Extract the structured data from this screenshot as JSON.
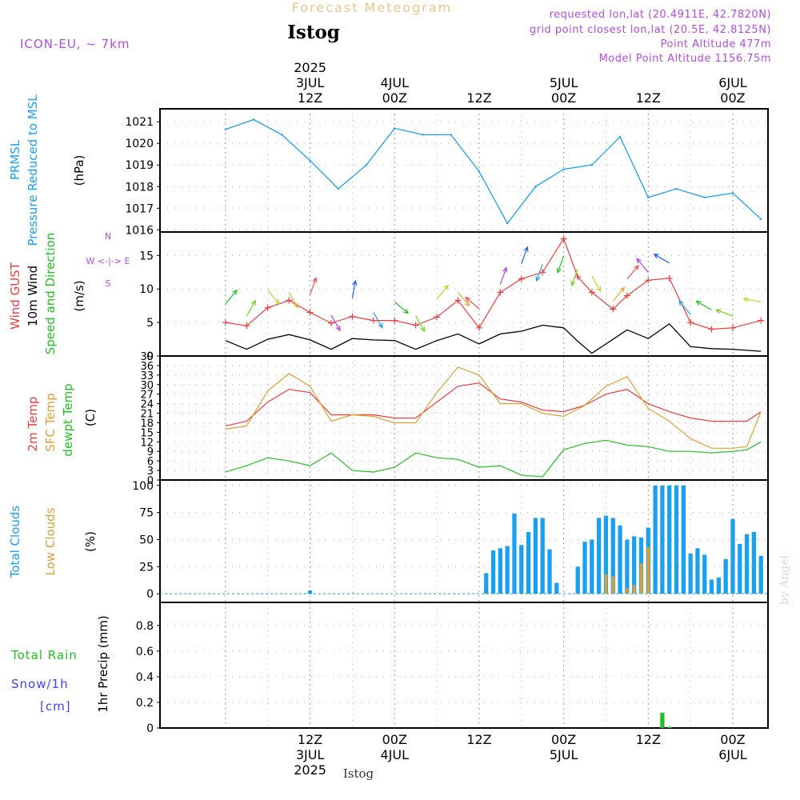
{
  "header": {
    "title": "Forecast Meteogram",
    "location": "Istog",
    "model": "ICON-EU, ~ 7km",
    "requested": "requested lon,lat (20.4911E, 42.7820N)",
    "grid_point": "grid point closest lon,lat (20.5E, 42.8125N)",
    "point_altitude": "Point Altitude 477m",
    "model_altitude": "Model Point Altitude 1156.75m",
    "footer_location": "Istog",
    "watermark": "by Angel"
  },
  "colors": {
    "title": "#e8c88a",
    "purple": "#b44ce0",
    "pressure": "#1aa0f0",
    "gust": "#f03c3c",
    "wind": "#000000",
    "windarrow": "#22c022",
    "sfc": "#e0a030",
    "temp2m": "#f03c3c",
    "dewpt": "#22c022",
    "totalclouds": "#1aa0f0",
    "lowclouds": "#d4a040",
    "rain": "#22c022",
    "snow": "#4040ff"
  },
  "time_axis": {
    "top_labels": [
      {
        "t": 12,
        "lines": [
          "2025",
          "3JUL",
          "12Z"
        ]
      },
      {
        "t": 24,
        "lines": [
          "4JUL",
          "00Z"
        ]
      },
      {
        "t": 36,
        "lines": [
          "12Z"
        ]
      },
      {
        "t": 48,
        "lines": [
          "5JUL",
          "00Z"
        ]
      },
      {
        "t": 60,
        "lines": [
          "12Z"
        ]
      },
      {
        "t": 72,
        "lines": [
          "6JUL",
          "00Z"
        ]
      }
    ],
    "bottom_labels": [
      {
        "t": 12,
        "lines": [
          "12Z",
          "3JUL",
          "2025"
        ]
      },
      {
        "t": 24,
        "lines": [
          "00Z",
          "4JUL"
        ]
      },
      {
        "t": 36,
        "lines": [
          "12Z"
        ]
      },
      {
        "t": 48,
        "lines": [
          "00Z",
          "5JUL"
        ]
      },
      {
        "t": 60,
        "lines": [
          "12Z"
        ]
      },
      {
        "t": 72,
        "lines": [
          "00Z",
          "6JUL"
        ]
      }
    ]
  },
  "chart_data": [
    {
      "type": "line",
      "ylabel": [
        "PRMSL",
        "Pressure Reduced to MSL",
        "(hPa)"
      ],
      "ylim": [
        1015.9,
        1021.6
      ],
      "yticks": [
        1016,
        1017,
        1018,
        1019,
        1020,
        1021
      ],
      "x": [
        0,
        4,
        8,
        12,
        16,
        20,
        24,
        28,
        32,
        36,
        40,
        44,
        48,
        52,
        56,
        60,
        64,
        68,
        72,
        76
      ],
      "series": [
        {
          "name": "PRMSL",
          "color": "#1aa0f0",
          "values": [
            1020.65,
            1021.1,
            1020.4,
            1019.2,
            1017.9,
            1019.0,
            1020.7,
            1020.4,
            1020.4,
            1018.7,
            1016.3,
            1018.0,
            1018.8,
            1019.0,
            1020.3,
            1017.5,
            1017.9,
            1017.5,
            1017.7,
            1016.5
          ]
        }
      ]
    },
    {
      "type": "line",
      "ylabel": [
        "Wind GUST",
        "10m Wind",
        "Speed and Direction",
        "(m/s)"
      ],
      "compass": [
        "N",
        "W <-|-> E",
        "S"
      ],
      "ylim": [
        0,
        18.5
      ],
      "yticks": [
        0,
        5,
        10,
        15
      ],
      "x": [
        0,
        3,
        6,
        9,
        12,
        15,
        18,
        21,
        24,
        27,
        30,
        33,
        36,
        39,
        42,
        45,
        48,
        50,
        52,
        55,
        57,
        60,
        63,
        66,
        69,
        72,
        76
      ],
      "series": [
        {
          "name": "Wind GUST",
          "color": "#f03c3c",
          "values": [
            5.0,
            4.5,
            7.2,
            8.3,
            6.5,
            4.9,
            5.9,
            5.3,
            5.3,
            4.6,
            5.8,
            8.3,
            4.2,
            9.5,
            11.5,
            12.5,
            17.5,
            11.8,
            9.5,
            7.0,
            9.0,
            11.3,
            11.6,
            5.0,
            4.0,
            4.2,
            5.3
          ]
        },
        {
          "name": "10m Wind",
          "color": "#000000",
          "values": [
            2.3,
            1.0,
            2.5,
            3.2,
            2.4,
            1.0,
            2.6,
            2.4,
            2.3,
            1.0,
            2.3,
            3.3,
            1.8,
            3.3,
            3.7,
            4.6,
            4.2,
            2.2,
            0.4,
            2.5,
            3.9,
            2.6,
            4.8,
            1.4,
            1.1,
            1.0,
            0.7
          ]
        }
      ]
    },
    {
      "type": "line",
      "ylabel": [
        "2m Temp",
        "SFC Temp",
        "dewpt Temp",
        "(C)"
      ],
      "ylim": [
        0,
        39
      ],
      "yticks": [
        0,
        3,
        6,
        9,
        12,
        15,
        18,
        21,
        24,
        27,
        30,
        33,
        36,
        39
      ],
      "x": [
        0,
        3,
        6,
        9,
        12,
        15,
        18,
        21,
        24,
        27,
        30,
        33,
        36,
        39,
        42,
        45,
        48,
        51,
        54,
        57,
        60,
        63,
        66,
        69,
        72,
        74,
        76
      ],
      "series": [
        {
          "name": "2m Temp",
          "color": "#f03c3c",
          "values": [
            17.0,
            18.5,
            24.5,
            28.5,
            27.5,
            20.5,
            20.5,
            20.5,
            19.5,
            19.5,
            24.5,
            29.5,
            30.5,
            25.5,
            24.5,
            22.0,
            21.5,
            23.5,
            27.0,
            28.5,
            24.0,
            21.5,
            19.5,
            18.5,
            18.5,
            18.5,
            21.5
          ]
        },
        {
          "name": "SFC Temp",
          "color": "#e0a030",
          "values": [
            16.0,
            17.0,
            28.0,
            33.5,
            29.5,
            18.5,
            20.5,
            20.0,
            18.0,
            18.0,
            27.5,
            35.5,
            33.0,
            24.0,
            24.0,
            21.0,
            20.0,
            23.5,
            29.5,
            32.5,
            22.5,
            18.5,
            13.0,
            10.0,
            10.0,
            10.5,
            21.5
          ]
        },
        {
          "name": "dewpt Temp",
          "color": "#22c022",
          "values": [
            2.5,
            4.5,
            7.0,
            6.0,
            4.5,
            8.5,
            3.0,
            2.5,
            4.0,
            8.5,
            7.0,
            6.5,
            4.0,
            4.5,
            1.5,
            1.0,
            9.5,
            11.5,
            12.5,
            11.0,
            10.5,
            9.0,
            9.0,
            8.5,
            9.0,
            9.5,
            12.0
          ]
        }
      ]
    },
    {
      "type": "bar",
      "ylabel": [
        "Total Clouds",
        "Low Clouds",
        "(%)"
      ],
      "ylim": [
        -8,
        105
      ],
      "yticks": [
        0,
        25,
        50,
        75,
        100
      ],
      "x": [
        12,
        37,
        38,
        39,
        40,
        41,
        42,
        43,
        44,
        45,
        46,
        47,
        48,
        49,
        50,
        51,
        52,
        53,
        54,
        55,
        56,
        57,
        58,
        59,
        60,
        61,
        62,
        63,
        64,
        65,
        66,
        67,
        68,
        69,
        70,
        71,
        72,
        73,
        74,
        75,
        76,
        77
      ],
      "series": [
        {
          "name": "Total Clouds",
          "color": "#1aa0f0",
          "values": [
            3,
            19,
            40,
            42,
            44,
            74,
            45,
            57,
            70,
            70,
            41,
            10,
            0,
            0,
            25,
            48,
            50,
            70,
            72,
            70,
            63,
            50,
            53,
            52,
            61,
            100,
            100,
            100,
            100,
            100,
            37,
            42,
            36,
            13,
            15,
            32,
            69,
            46,
            55,
            57,
            35,
            0
          ]
        },
        {
          "name": "Low Clouds",
          "color": "#d4a040",
          "values": [
            0,
            0,
            0,
            0,
            0,
            0,
            0,
            0,
            0,
            0,
            0,
            0,
            0,
            0,
            0,
            0,
            0,
            0,
            18,
            16,
            0,
            5,
            8,
            28,
            43,
            0,
            0,
            0,
            0,
            0,
            0,
            0,
            0,
            0,
            0,
            0,
            0,
            0,
            0,
            0,
            0,
            0
          ]
        }
      ]
    },
    {
      "type": "bar",
      "ylabel": [
        "Total Rain",
        "Snow/1h",
        "[cm]",
        "1hr Precip (mm)"
      ],
      "ylim": [
        0,
        0.98
      ],
      "yticks": [
        0,
        0.2,
        0.4,
        0.6,
        0.8
      ],
      "x": [
        62,
        63
      ],
      "series": [
        {
          "name": "Total Rain",
          "color": "#22c022",
          "values": [
            0.12,
            0.01
          ]
        }
      ]
    }
  ]
}
